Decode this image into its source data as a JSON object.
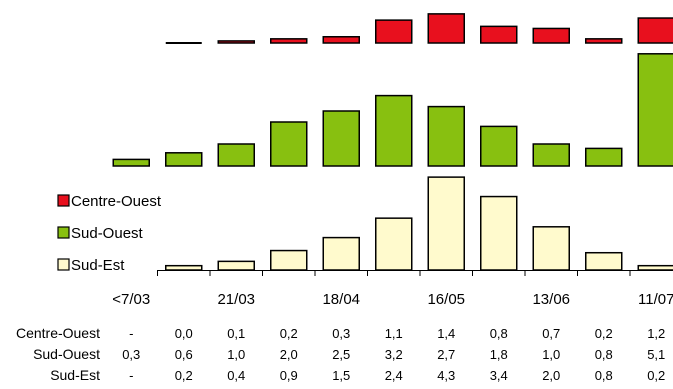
{
  "chart_data": {
    "type": "bar",
    "layout": "stacked-panels",
    "x_tick_labels": [
      "<7/03",
      "21/03",
      "18/04",
      "16/05",
      "13/06",
      "11/07"
    ],
    "x_tick_label_positions": [
      0,
      2,
      4,
      6,
      8,
      10
    ],
    "series": [
      {
        "name": "Centre-Ouest",
        "color": "#e8101e",
        "values": [
          null,
          0.0,
          0.1,
          0.2,
          0.3,
          1.1,
          1.4,
          0.8,
          0.7,
          0.2,
          1.2
        ]
      },
      {
        "name": "Sud-Ouest",
        "color": "#88c010",
        "values": [
          0.3,
          0.6,
          1.0,
          2.0,
          2.5,
          3.2,
          2.7,
          1.8,
          1.0,
          0.8,
          5.1
        ]
      },
      {
        "name": "Sud-Est",
        "color": "#fffacd",
        "values": [
          null,
          0.2,
          0.4,
          0.9,
          1.5,
          2.4,
          4.3,
          3.4,
          2.0,
          0.8,
          0.2
        ]
      }
    ],
    "table": {
      "row_labels": [
        "Centre-Ouest",
        "Sud-Ouest",
        "Sud-Est"
      ],
      "rows": [
        [
          "-",
          "0,0",
          "0,1",
          "0,2",
          "0,3",
          "1,1",
          "1,4",
          "0,8",
          "0,7",
          "0,2",
          "1,2"
        ],
        [
          "0,3",
          "0,6",
          "1,0",
          "2,0",
          "2,5",
          "3,2",
          "2,7",
          "1,8",
          "1,0",
          "0,8",
          "5,1"
        ],
        [
          "-",
          "0,2",
          "0,4",
          "0,9",
          "1,5",
          "2,4",
          "4,3",
          "3,4",
          "2,0",
          "0,8",
          "0,2"
        ]
      ]
    },
    "legend": {
      "placement": "middle-left",
      "items": [
        "Centre-Ouest",
        "Sud-Ouest",
        "Sud-Est"
      ]
    },
    "grid": false
  }
}
